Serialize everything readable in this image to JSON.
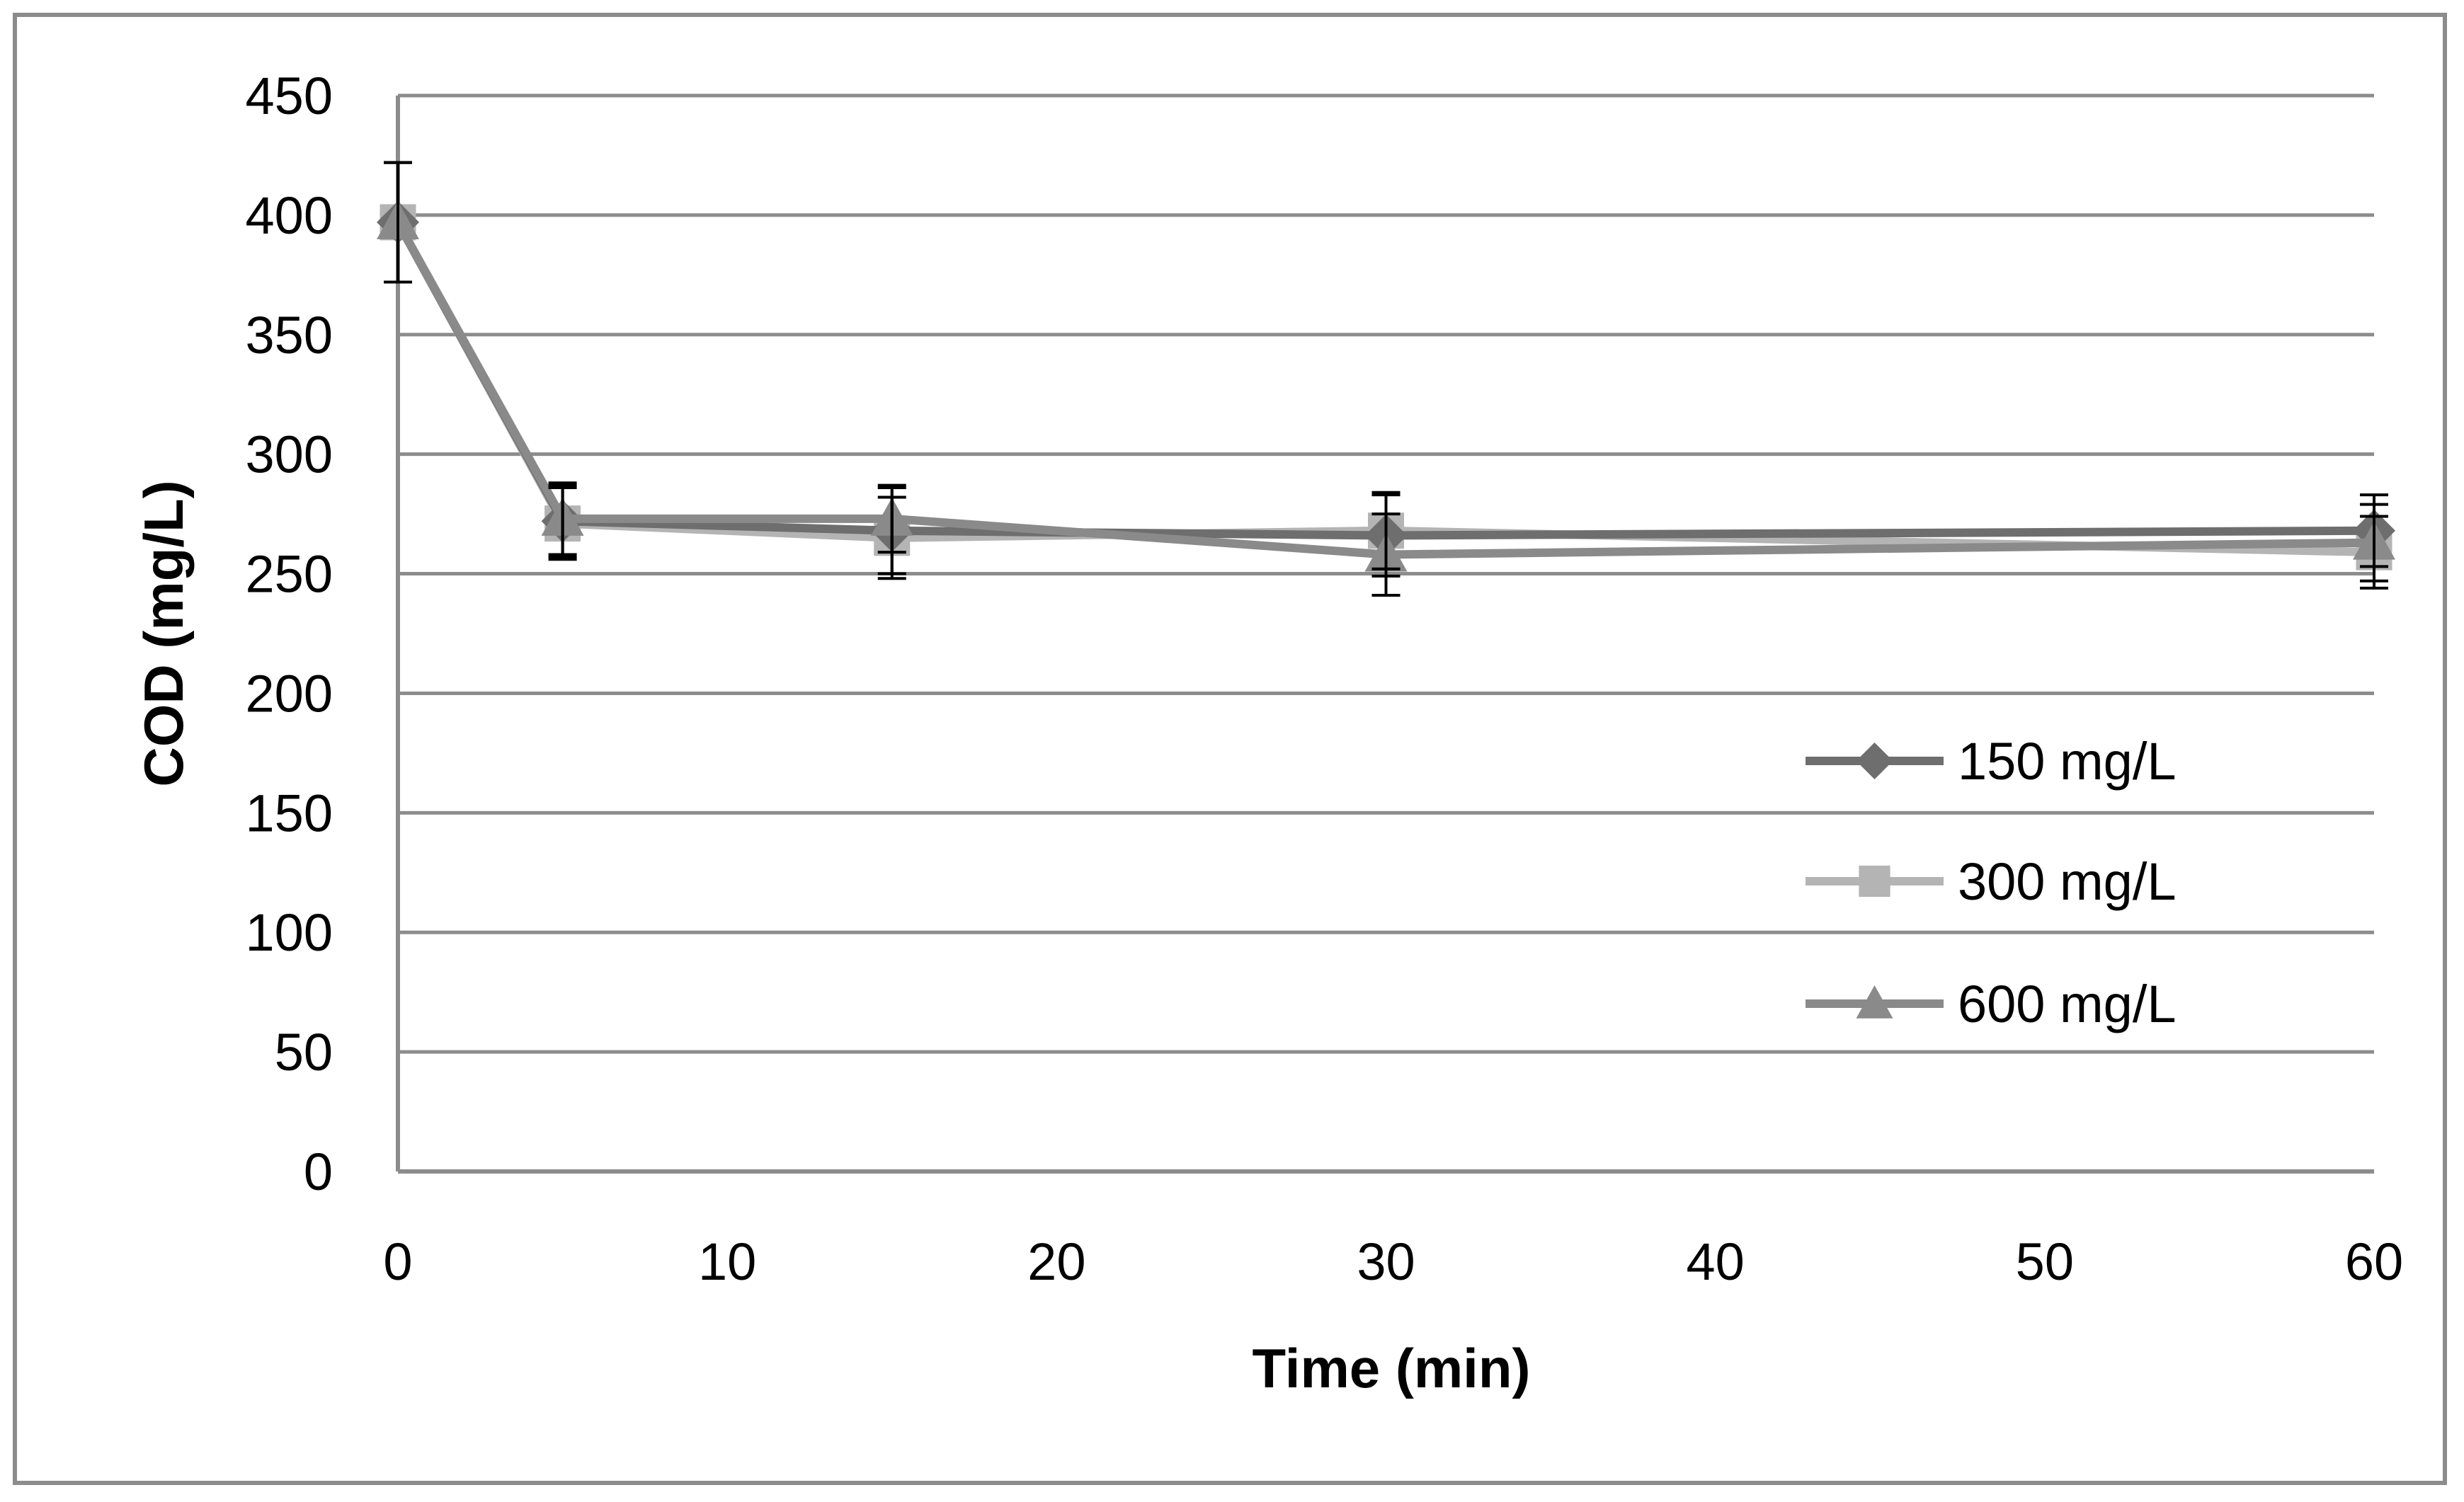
{
  "chart_data": {
    "type": "line",
    "title": "",
    "xlabel": "Time (min)",
    "ylabel": "COD (mg/L)",
    "xlim": [
      0,
      60
    ],
    "ylim": [
      0,
      450
    ],
    "xticks": [
      0,
      10,
      20,
      30,
      40,
      50,
      60
    ],
    "yticks": [
      0,
      50,
      100,
      150,
      200,
      250,
      300,
      350,
      400,
      450
    ],
    "grid": "horizontal",
    "legend_position": "right",
    "x": [
      0,
      5,
      15,
      30,
      60
    ],
    "series": [
      {
        "name": "150 mg/L",
        "color": "#6e6e6e",
        "marker": "diamond",
        "values": [
          397,
          272,
          268,
          266,
          268
        ],
        "errors": [
          25,
          15,
          18,
          17,
          15
        ]
      },
      {
        "name": "300 mg/L",
        "color": "#b4b4b4",
        "marker": "square",
        "values": [
          397,
          271,
          265,
          268,
          259
        ],
        "errors": [
          25,
          15,
          17,
          16,
          15
        ]
      },
      {
        "name": "600 mg/L",
        "color": "#8a8a8a",
        "marker": "triangle",
        "values": [
          397,
          273,
          273,
          258,
          263
        ],
        "errors": [
          25,
          15,
          14,
          17,
          16
        ]
      }
    ]
  }
}
